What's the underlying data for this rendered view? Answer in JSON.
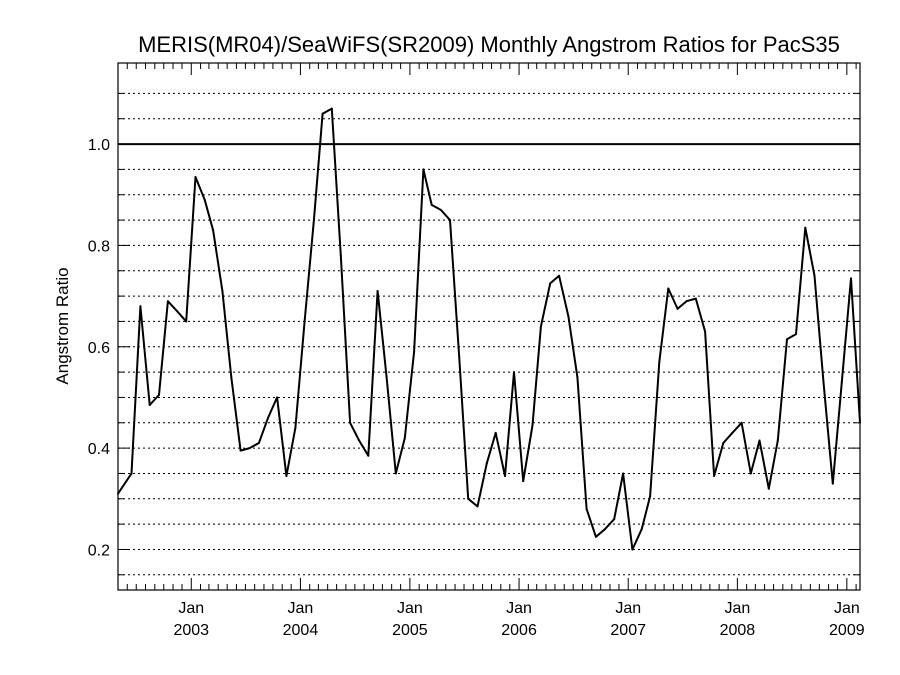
{
  "chart_data": {
    "type": "line",
    "title": "MERIS(MR04)/SeaWiFS(SR2009) Monthly Angstrom Ratios for PacS35",
    "xlabel": "",
    "ylabel": "Angstrom Ratio",
    "ylim": [
      0.12,
      1.16
    ],
    "xlim": [
      "2002-05-01",
      "2009-02-14"
    ],
    "grid": "horizontal dotted, every 0.05",
    "reference_line": 1.0,
    "y_ticks": [
      0.2,
      0.4,
      0.6,
      0.8,
      1.0
    ],
    "y_tick_labels": [
      "0.2",
      "0.4",
      "0.6",
      "0.8",
      "1.0"
    ],
    "x_ticks": [
      {
        "date": "2003-01-01",
        "month": "Jan",
        "year": "2003"
      },
      {
        "date": "2004-01-01",
        "month": "Jan",
        "year": "2004"
      },
      {
        "date": "2005-01-01",
        "month": "Jan",
        "year": "2005"
      },
      {
        "date": "2006-01-01",
        "month": "Jan",
        "year": "2006"
      },
      {
        "date": "2007-01-01",
        "month": "Jan",
        "year": "2007"
      },
      {
        "date": "2008-01-01",
        "month": "Jan",
        "year": "2008"
      },
      {
        "date": "2009-01-01",
        "month": "Jan",
        "year": "2009"
      }
    ],
    "series": [
      {
        "x": [
          "2002-05",
          "2002-06",
          "2002-07",
          "2002-08",
          "2002-09",
          "2002-10",
          "2002-11",
          "2002-12",
          "2003-01",
          "2003-02",
          "2003-03",
          "2003-04",
          "2003-05",
          "2003-06",
          "2003-07",
          "2003-08",
          "2003-09",
          "2003-10",
          "2003-11",
          "2003-12",
          "2004-01",
          "2004-02",
          "2004-03",
          "2004-04",
          "2004-05",
          "2004-06",
          "2004-07",
          "2004-08",
          "2004-09",
          "2004-10",
          "2004-11",
          "2004-12",
          "2005-01",
          "2005-02",
          "2005-03",
          "2005-04",
          "2005-05",
          "2005-06",
          "2005-07",
          "2005-08",
          "2005-09",
          "2005-10",
          "2005-11",
          "2005-12",
          "2006-01",
          "2006-02",
          "2006-03",
          "2006-04",
          "2006-05",
          "2006-06",
          "2006-07",
          "2006-08",
          "2006-09",
          "2006-10",
          "2006-11",
          "2006-12",
          "2007-01",
          "2007-02",
          "2007-03",
          "2007-04",
          "2007-05",
          "2007-06",
          "2007-07",
          "2007-08",
          "2007-09",
          "2007-10",
          "2007-11",
          "2007-12",
          "2008-01",
          "2008-02",
          "2008-03",
          "2008-04",
          "2008-05",
          "2008-06",
          "2008-07",
          "2008-08",
          "2008-09",
          "2008-10",
          "2008-11",
          "2008-12",
          "2009-01",
          "2009-02"
        ],
        "values": [
          0.31,
          0.35,
          0.68,
          0.485,
          0.505,
          0.69,
          0.67,
          0.65,
          0.935,
          0.89,
          0.83,
          0.71,
          0.54,
          0.395,
          0.4,
          0.41,
          0.46,
          0.5,
          0.345,
          0.44,
          0.65,
          0.85,
          1.06,
          1.07,
          0.78,
          0.45,
          0.415,
          0.385,
          0.71,
          0.54,
          0.35,
          0.42,
          0.59,
          0.95,
          0.88,
          0.87,
          0.85,
          0.58,
          0.3,
          0.285,
          0.37,
          0.43,
          0.345,
          0.55,
          0.335,
          0.445,
          0.64,
          0.725,
          0.74,
          0.66,
          0.54,
          0.28,
          0.225,
          0.24,
          0.26,
          0.35,
          0.2,
          0.24,
          0.305,
          0.57,
          0.715,
          0.675,
          0.69,
          0.695,
          0.63,
          0.345,
          0.41,
          0.43,
          0.45,
          0.35,
          0.415,
          0.32,
          0.415,
          0.615,
          0.625,
          0.835,
          0.74,
          0.53,
          0.33,
          0.53,
          0.735,
          0.45
        ]
      }
    ]
  }
}
